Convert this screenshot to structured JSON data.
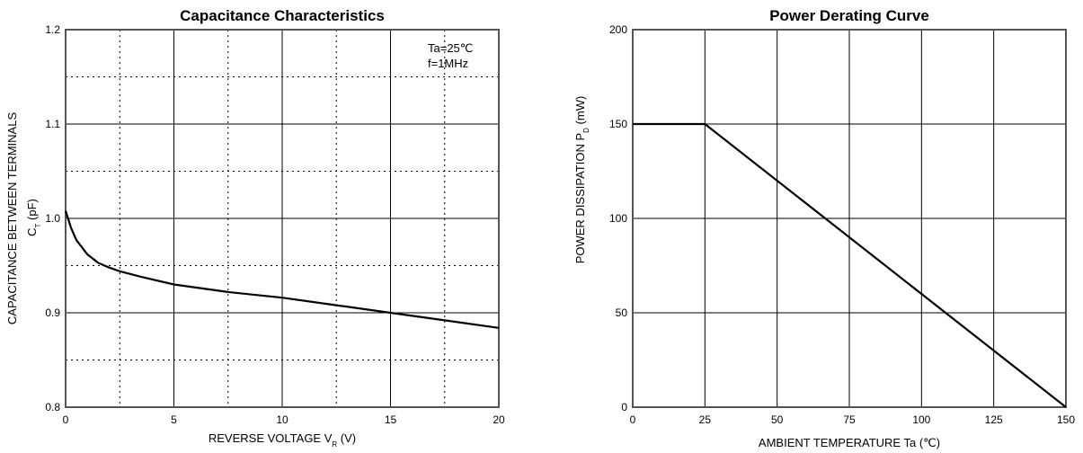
{
  "chart_data": [
    {
      "type": "line",
      "title": "Capacitance Characteristics",
      "xlabel": "REVERSE VOLTAGE",
      "xlabel_symbol": "V",
      "xlabel_sub": "R",
      "xlabel_unit": "(V)",
      "ylabel": "CAPACITANCE BETWEEN TERMINALS",
      "ylabel_symbol": "C",
      "ylabel_sub": "T",
      "ylabel_unit": "(pF)",
      "xlim": [
        0,
        20
      ],
      "ylim": [
        0.8,
        1.2
      ],
      "xticks": [
        "0",
        "5",
        "10",
        "15",
        "20"
      ],
      "yticks": [
        "0.8",
        "0.9",
        "1.0",
        "1.1",
        "1.2"
      ],
      "grid": "major solid, minor dotted",
      "annotations": [
        "Ta=25℃",
        "f=1MHz"
      ],
      "series": [
        {
          "x": [
            0,
            0.25,
            0.5,
            1,
            1.5,
            2,
            2.5,
            3.5,
            5,
            7.5,
            10,
            12.5,
            15,
            17.5,
            20
          ],
          "y": [
            1.008,
            0.99,
            0.977,
            0.962,
            0.953,
            0.948,
            0.944,
            0.938,
            0.93,
            0.922,
            0.916,
            0.908,
            0.9,
            0.892,
            0.884
          ]
        }
      ]
    },
    {
      "type": "line",
      "title": "Power Derating Curve",
      "xlabel": "AMBIENT TEMPERATURE",
      "xlabel_symbol": "Ta",
      "xlabel_sub": "",
      "xlabel_unit": "(℃)",
      "ylabel": "POWER DISSIPATION",
      "ylabel_symbol": "P",
      "ylabel_sub": "D",
      "ylabel_unit": "(mW)",
      "xlim": [
        0,
        150
      ],
      "ylim": [
        0,
        200
      ],
      "xticks": [
        "0",
        "25",
        "50",
        "75",
        "100",
        "125",
        "150"
      ],
      "yticks": [
        "0",
        "50",
        "100",
        "150",
        "200"
      ],
      "grid": "solid",
      "series": [
        {
          "x": [
            0,
            25,
            150
          ],
          "y": [
            150,
            150,
            0
          ]
        }
      ]
    }
  ]
}
